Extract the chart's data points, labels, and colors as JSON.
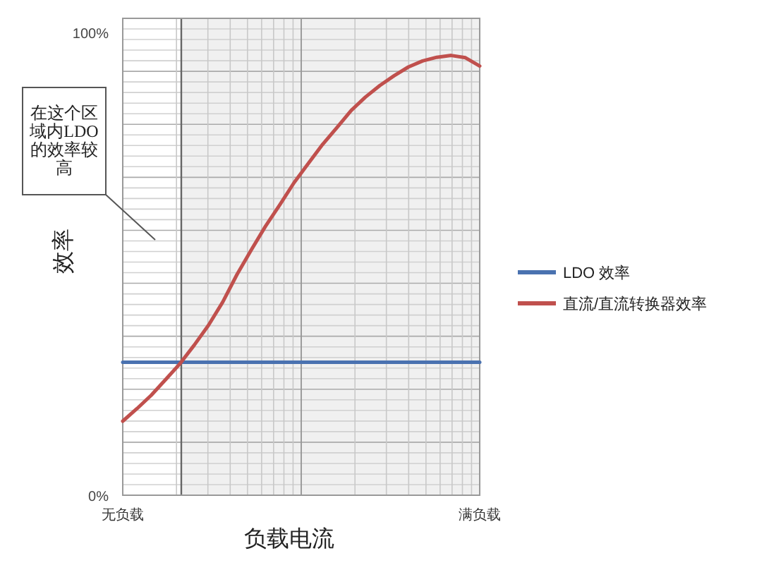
{
  "chart_data": {
    "type": "line",
    "xlabel": "负载电流",
    "ylabel": "效率",
    "categories": [
      "无负载",
      null,
      null,
      null,
      null,
      null,
      null,
      null,
      null,
      null,
      null,
      null,
      null,
      null,
      null,
      null,
      null,
      null,
      null,
      null,
      null,
      null,
      null,
      null,
      null,
      "满负载"
    ],
    "series": [
      {
        "name": "LDO 效率",
        "color": "#4a72b0",
        "values": [
          28.7,
          28.7,
          28.7,
          28.7,
          28.7,
          28.7,
          28.7,
          28.7,
          28.7,
          28.7,
          28.7,
          28.7,
          28.7,
          28.7,
          28.7,
          28.7,
          28.7,
          28.7,
          28.7,
          28.7,
          28.7,
          28.7,
          28.7,
          28.7,
          28.7,
          28.7
        ]
      },
      {
        "name": "直流/直流转换器效率",
        "color": "#c0504d",
        "values": [
          16,
          18.7,
          21.6,
          25,
          28.4,
          32.4,
          36.7,
          41.7,
          47.7,
          53,
          58.1,
          62.7,
          67.5,
          71.7,
          75.8,
          79.4,
          83.1,
          86,
          88.5,
          90.6,
          92.5,
          93.8,
          94.6,
          95,
          94.5,
          92.7
        ]
      }
    ],
    "ylim": [
      0,
      103
    ],
    "yticks": [
      {
        "value": 0,
        "label": "0%"
      },
      {
        "value": 100,
        "label": "100%"
      }
    ],
    "grid": true,
    "legend": "right",
    "annotations": [
      "在这个区域内LDO的效率较高"
    ]
  }
}
